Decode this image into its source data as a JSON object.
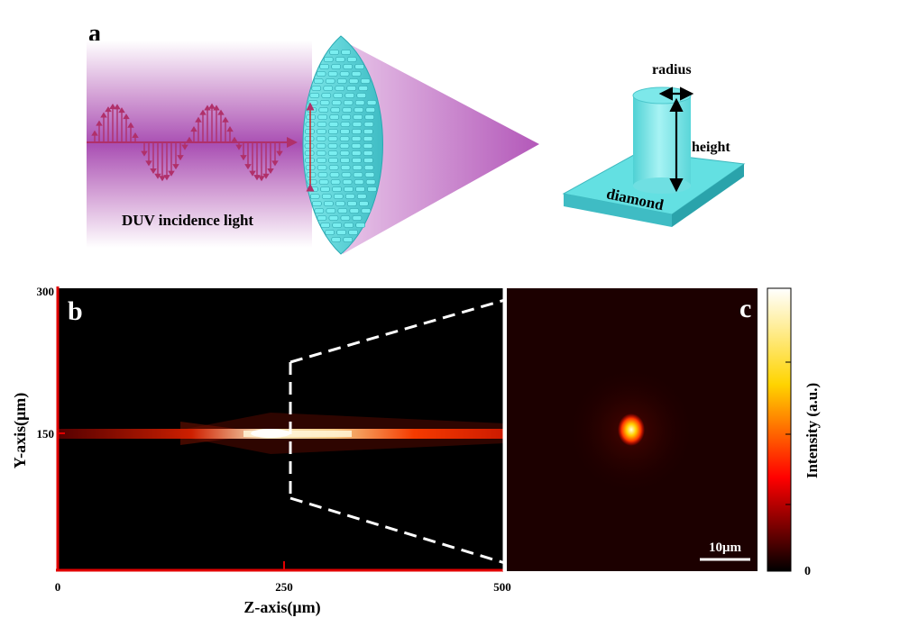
{
  "panel_a": {
    "label": "a",
    "incidence_label": "DUV incidence light",
    "pillar": {
      "radius_label": "radius",
      "height_label": "height",
      "substrate_label": "diamond"
    }
  },
  "panel_b": {
    "label": "b",
    "xlabel": "Z-axis(μm)",
    "ylabel": "Y-axis(μm)",
    "x_ticks": [
      "0",
      "250",
      "500"
    ],
    "y_ticks": [
      "300",
      "150"
    ],
    "colormap": "hot",
    "axis_color": "#e00000"
  },
  "panel_c": {
    "label": "c",
    "scale_bar_label": "10μm",
    "colorbar_label": "Intensity (a.u.)",
    "colorbar_min_label": "0"
  },
  "colors": {
    "metalens": "#63e0e2",
    "light_wave": "#b0306a",
    "beam_purple": "#b061b8"
  }
}
